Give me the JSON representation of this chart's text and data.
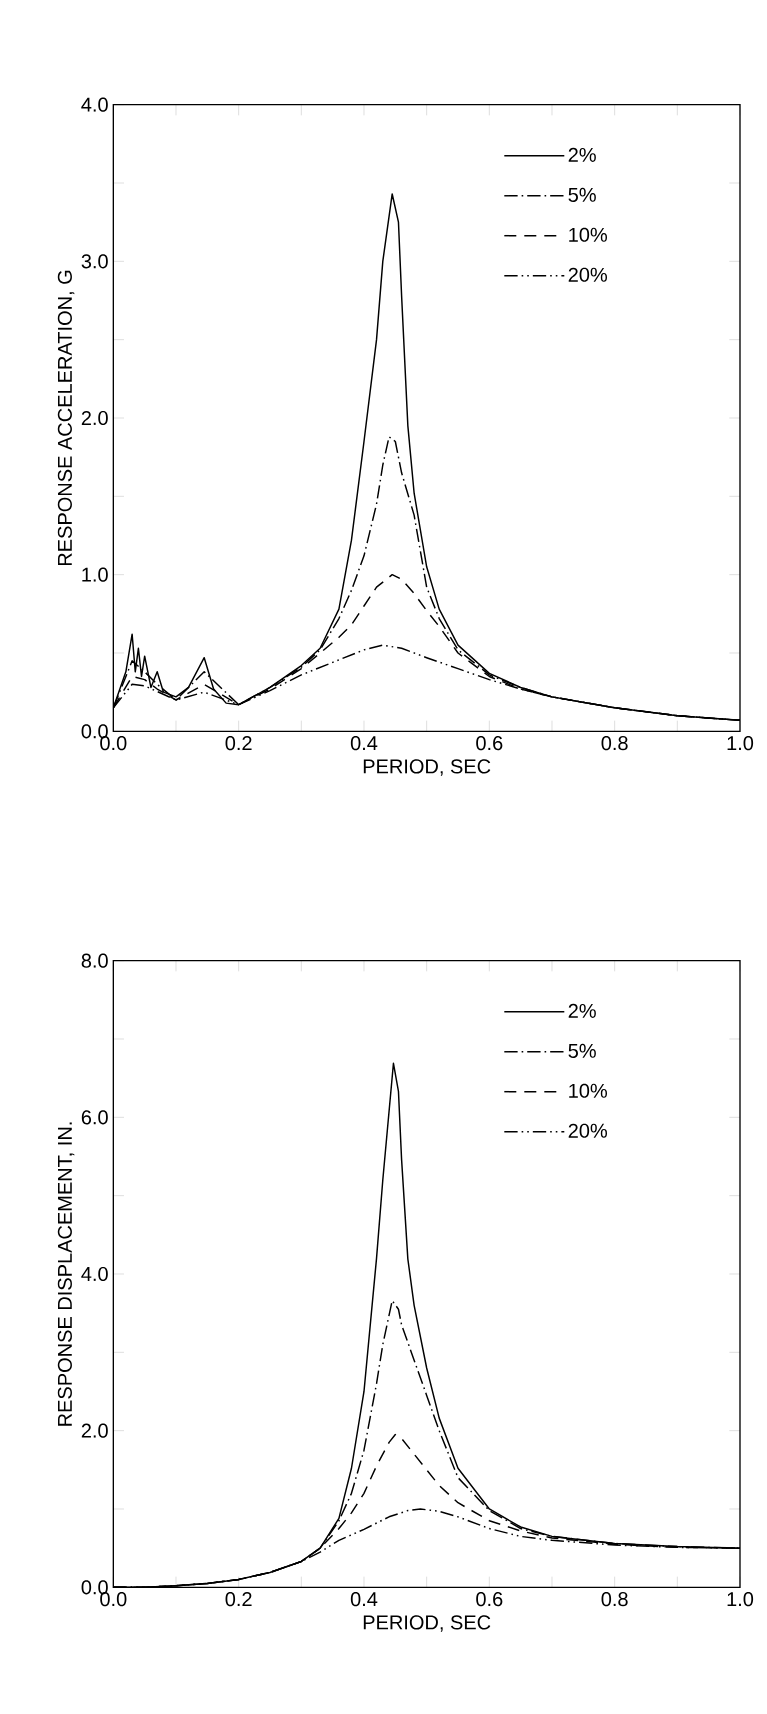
{
  "chart_data": [
    {
      "type": "line",
      "xlabel": "PERIOD, SEC",
      "ylabel": "RESPONSE ACCELERATION, G",
      "xlim": [
        0,
        1
      ],
      "ylim": [
        0,
        4
      ],
      "legend": "top right",
      "xticks": [
        {
          "value": 0,
          "label": "0.0"
        },
        {
          "value": 0.1,
          "label": null
        },
        {
          "value": 0.2,
          "label": "0.2"
        },
        {
          "value": 0.3,
          "label": null
        },
        {
          "value": 0.4,
          "label": "0.4"
        },
        {
          "value": 0.5,
          "label": null
        },
        {
          "value": 0.6,
          "label": "0.6"
        },
        {
          "value": 0.7,
          "label": null
        },
        {
          "value": 0.8,
          "label": "0.8"
        },
        {
          "value": 0.9,
          "label": null
        },
        {
          "value": 1,
          "label": "1.0"
        }
      ],
      "yticks": [
        {
          "value": 0,
          "label": "0.0"
        },
        {
          "value": 0.5,
          "label": null
        },
        {
          "value": 1,
          "label": "1.0"
        },
        {
          "value": 1.5,
          "label": null
        },
        {
          "value": 2,
          "label": "2.0"
        },
        {
          "value": 2.5,
          "label": null
        },
        {
          "value": 3,
          "label": "3.0"
        },
        {
          "value": 3.5,
          "label": null
        },
        {
          "value": 4,
          "label": "4.0"
        }
      ],
      "series": [
        {
          "name": "2%",
          "color": "#000000",
          "line_style": "solid",
          "x": [
            0.0,
            0.02,
            0.03,
            0.035,
            0.04,
            0.045,
            0.05,
            0.06,
            0.07,
            0.08,
            0.1,
            0.12,
            0.145,
            0.16,
            0.18,
            0.2,
            0.25,
            0.3,
            0.33,
            0.36,
            0.38,
            0.4,
            0.42,
            0.43,
            0.445,
            0.455,
            0.46,
            0.47,
            0.48,
            0.5,
            0.52,
            0.55,
            0.6,
            0.65,
            0.7,
            0.8,
            0.9,
            1.0
          ],
          "values": [
            0.15,
            0.38,
            0.62,
            0.38,
            0.53,
            0.35,
            0.48,
            0.28,
            0.38,
            0.25,
            0.22,
            0.28,
            0.47,
            0.27,
            0.18,
            0.17,
            0.28,
            0.42,
            0.53,
            0.78,
            1.22,
            1.85,
            2.5,
            3.0,
            3.43,
            3.25,
            2.78,
            1.95,
            1.52,
            1.05,
            0.78,
            0.55,
            0.37,
            0.28,
            0.22,
            0.15,
            0.1,
            0.07
          ]
        },
        {
          "name": "5%",
          "color": "#000000",
          "line_style": "dashdot",
          "x": [
            0.0,
            0.03,
            0.05,
            0.07,
            0.1,
            0.145,
            0.2,
            0.25,
            0.3,
            0.33,
            0.36,
            0.38,
            0.4,
            0.42,
            0.43,
            0.44,
            0.45,
            0.46,
            0.48,
            0.5,
            0.52,
            0.55,
            0.6,
            0.65,
            0.7,
            0.8,
            0.9,
            1.0
          ],
          "values": [
            0.15,
            0.45,
            0.38,
            0.3,
            0.2,
            0.38,
            0.17,
            0.28,
            0.41,
            0.52,
            0.72,
            0.9,
            1.12,
            1.45,
            1.7,
            1.88,
            1.85,
            1.65,
            1.38,
            0.92,
            0.72,
            0.52,
            0.36,
            0.28,
            0.22,
            0.15,
            0.1,
            0.07
          ]
        },
        {
          "name": "10%",
          "color": "#000000",
          "line_style": "dashed",
          "x": [
            0.0,
            0.03,
            0.05,
            0.07,
            0.1,
            0.145,
            0.2,
            0.25,
            0.3,
            0.33,
            0.36,
            0.38,
            0.4,
            0.42,
            0.445,
            0.46,
            0.48,
            0.5,
            0.52,
            0.55,
            0.6,
            0.65,
            0.7,
            0.8,
            0.9,
            1.0
          ],
          "values": [
            0.15,
            0.35,
            0.33,
            0.27,
            0.2,
            0.3,
            0.17,
            0.27,
            0.4,
            0.5,
            0.6,
            0.68,
            0.8,
            0.92,
            1.0,
            0.97,
            0.88,
            0.77,
            0.67,
            0.5,
            0.35,
            0.27,
            0.22,
            0.15,
            0.1,
            0.07
          ]
        },
        {
          "name": "20%",
          "color": "#000000",
          "line_style": "dashdotdot",
          "x": [
            0.0,
            0.03,
            0.05,
            0.1,
            0.145,
            0.2,
            0.25,
            0.3,
            0.35,
            0.4,
            0.43,
            0.46,
            0.5,
            0.55,
            0.6,
            0.65,
            0.7,
            0.8,
            0.9,
            1.0
          ],
          "values": [
            0.15,
            0.3,
            0.29,
            0.2,
            0.25,
            0.17,
            0.26,
            0.36,
            0.44,
            0.52,
            0.55,
            0.53,
            0.47,
            0.4,
            0.33,
            0.27,
            0.22,
            0.15,
            0.1,
            0.07
          ]
        }
      ]
    },
    {
      "type": "line",
      "xlabel": "PERIOD, SEC",
      "ylabel": "RESPONSE DISPLACEMENT, IN.",
      "xlim": [
        0,
        1
      ],
      "ylim": [
        0,
        8
      ],
      "legend": "top right",
      "xticks": [
        {
          "value": 0,
          "label": "0.0"
        },
        {
          "value": 0.1,
          "label": null
        },
        {
          "value": 0.2,
          "label": "0.2"
        },
        {
          "value": 0.3,
          "label": null
        },
        {
          "value": 0.4,
          "label": "0.4"
        },
        {
          "value": 0.5,
          "label": null
        },
        {
          "value": 0.6,
          "label": "0.6"
        },
        {
          "value": 0.7,
          "label": null
        },
        {
          "value": 0.8,
          "label": "0.8"
        },
        {
          "value": 0.9,
          "label": null
        },
        {
          "value": 1,
          "label": "1.0"
        }
      ],
      "yticks": [
        {
          "value": 0,
          "label": "0.0"
        },
        {
          "value": 1,
          "label": null
        },
        {
          "value": 2,
          "label": "2.0"
        },
        {
          "value": 3,
          "label": null
        },
        {
          "value": 4,
          "label": "4.0"
        },
        {
          "value": 5,
          "label": null
        },
        {
          "value": 6,
          "label": "6.0"
        },
        {
          "value": 7,
          "label": null
        },
        {
          "value": 8,
          "label": "8.0"
        }
      ],
      "series": [
        {
          "name": "2%",
          "color": "#000000",
          "line_style": "solid",
          "x": [
            0.0,
            0.05,
            0.1,
            0.15,
            0.2,
            0.25,
            0.3,
            0.33,
            0.36,
            0.38,
            0.4,
            0.42,
            0.43,
            0.447,
            0.455,
            0.46,
            0.47,
            0.48,
            0.5,
            0.52,
            0.55,
            0.6,
            0.65,
            0.7,
            0.8,
            0.9,
            1.0
          ],
          "values": [
            0.0,
            0.0,
            0.02,
            0.05,
            0.1,
            0.19,
            0.33,
            0.5,
            0.88,
            1.52,
            2.5,
            4.2,
            5.2,
            6.69,
            6.33,
            5.46,
            4.19,
            3.6,
            2.8,
            2.16,
            1.52,
            1.0,
            0.77,
            0.65,
            0.56,
            0.52,
            0.5
          ]
        },
        {
          "name": "5%",
          "color": "#000000",
          "line_style": "dashdot",
          "x": [
            0.0,
            0.05,
            0.1,
            0.15,
            0.2,
            0.25,
            0.3,
            0.33,
            0.36,
            0.38,
            0.4,
            0.42,
            0.43,
            0.445,
            0.455,
            0.46,
            0.48,
            0.5,
            0.52,
            0.55,
            0.6,
            0.65,
            0.7,
            0.8,
            0.9,
            1.0
          ],
          "values": [
            0.0,
            0.0,
            0.02,
            0.05,
            0.1,
            0.19,
            0.33,
            0.5,
            0.85,
            1.2,
            1.75,
            2.6,
            3.1,
            3.66,
            3.55,
            3.35,
            2.9,
            2.45,
            2.0,
            1.4,
            0.98,
            0.75,
            0.65,
            0.56,
            0.52,
            0.5
          ]
        },
        {
          "name": "10%",
          "color": "#000000",
          "line_style": "dashed",
          "x": [
            0.0,
            0.05,
            0.1,
            0.15,
            0.2,
            0.25,
            0.3,
            0.33,
            0.36,
            0.38,
            0.4,
            0.42,
            0.44,
            0.45,
            0.46,
            0.48,
            0.5,
            0.52,
            0.55,
            0.6,
            0.65,
            0.7,
            0.8,
            0.9,
            1.0
          ],
          "values": [
            0.0,
            0.0,
            0.02,
            0.05,
            0.1,
            0.19,
            0.33,
            0.5,
            0.75,
            0.95,
            1.2,
            1.55,
            1.85,
            1.95,
            1.9,
            1.7,
            1.5,
            1.3,
            1.08,
            0.85,
            0.72,
            0.63,
            0.55,
            0.51,
            0.5
          ]
        },
        {
          "name": "20%",
          "color": "#000000",
          "line_style": "dashdotdot",
          "x": [
            0.0,
            0.05,
            0.1,
            0.15,
            0.2,
            0.25,
            0.3,
            0.33,
            0.36,
            0.4,
            0.44,
            0.47,
            0.49,
            0.52,
            0.55,
            0.6,
            0.65,
            0.7,
            0.8,
            0.9,
            1.0
          ],
          "values": [
            0.0,
            0.0,
            0.02,
            0.05,
            0.1,
            0.19,
            0.33,
            0.45,
            0.6,
            0.74,
            0.9,
            0.98,
            1.0,
            0.97,
            0.9,
            0.75,
            0.65,
            0.6,
            0.54,
            0.51,
            0.5
          ]
        }
      ]
    }
  ]
}
